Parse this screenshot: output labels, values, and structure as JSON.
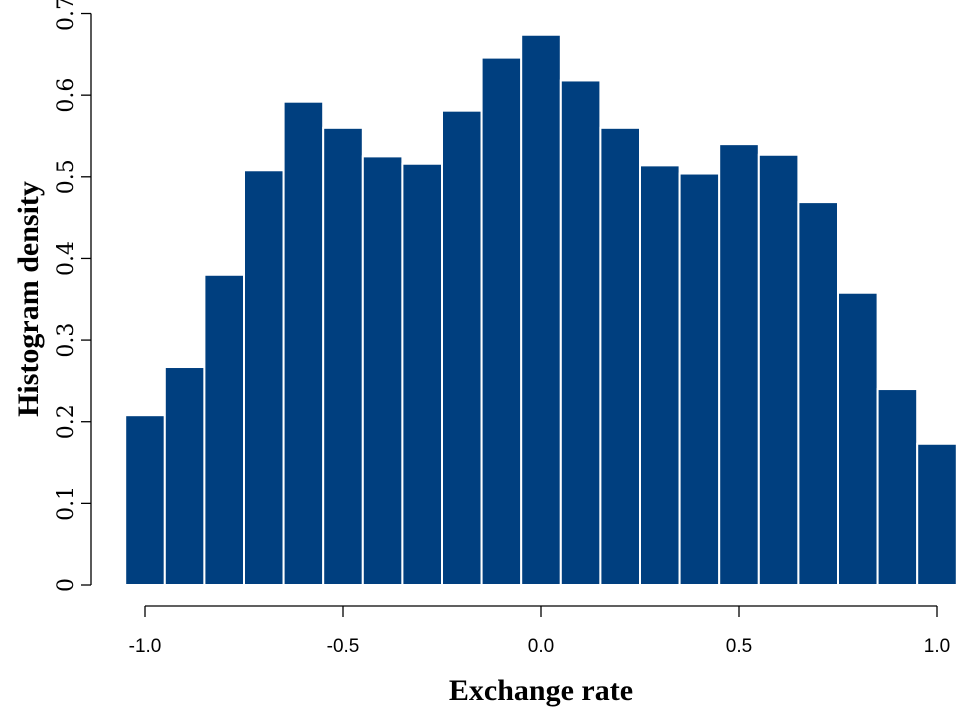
{
  "chart_data": {
    "type": "bar",
    "subtype": "histogram",
    "xlabel": "Exchange rate",
    "ylabel": "Histogram density",
    "xlim": [
      -1.0,
      1.0
    ],
    "ylim": [
      0,
      0.7
    ],
    "bar_color": "#003f7f",
    "grid": false,
    "bin_edges": [
      -1.05,
      -0.95,
      -0.85,
      -0.75,
      -0.65,
      -0.55,
      -0.45,
      -0.35,
      -0.25,
      -0.15,
      -0.05,
      0.05,
      0.15,
      0.25,
      0.35,
      0.45,
      0.55,
      0.65,
      0.75,
      0.85,
      0.95,
      1.05
    ],
    "values": [
      0.208,
      0.267,
      0.38,
      0.508,
      0.592,
      0.56,
      0.525,
      0.516,
      0.581,
      0.646,
      0.674,
      0.618,
      0.56,
      0.514,
      0.504,
      0.54,
      0.527,
      0.469,
      0.358,
      0.24,
      0.173
    ],
    "x_ticks": [
      {
        "value": -1.0,
        "label": "-1.0"
      },
      {
        "value": -0.5,
        "label": "-0.5"
      },
      {
        "value": 0.0,
        "label": "0.0"
      },
      {
        "value": 0.5,
        "label": "0.5"
      },
      {
        "value": 1.0,
        "label": "1.0"
      }
    ],
    "y_ticks": [
      {
        "value": 0,
        "label": "0"
      },
      {
        "value": 0.1,
        "label": "0.1"
      },
      {
        "value": 0.2,
        "label": "0.2"
      },
      {
        "value": 0.3,
        "label": "0.3"
      },
      {
        "value": 0.4,
        "label": "0.4"
      },
      {
        "value": 0.5,
        "label": "0.5"
      },
      {
        "value": 0.6,
        "label": "0.6"
      },
      {
        "value": 0.7,
        "label": "0.7"
      }
    ]
  }
}
